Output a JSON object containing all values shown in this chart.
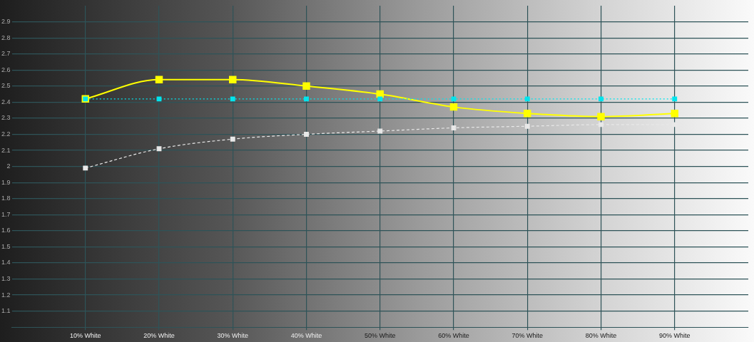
{
  "chart_data": {
    "type": "line",
    "categories": [
      "10% White",
      "20% White",
      "30% White",
      "40% White",
      "50% White",
      "60% White",
      "70% White",
      "80% White",
      "90% White"
    ],
    "series": [
      {
        "color": "#ffff00",
        "line_style": "solid",
        "values": [
          2.42,
          2.54,
          2.54,
          2.5,
          2.45,
          2.37,
          2.33,
          2.31,
          2.33
        ]
      },
      {
        "color": "#00e5ee",
        "line_style": "dotted",
        "values": [
          2.42,
          2.42,
          2.42,
          2.42,
          2.42,
          2.42,
          2.42,
          2.42,
          2.42
        ]
      },
      {
        "color": "#e8e8e8",
        "line_style": "dashed",
        "values": [
          1.99,
          2.11,
          2.17,
          2.2,
          2.22,
          2.24,
          2.25,
          2.26,
          2.26
        ]
      }
    ],
    "ylim": [
      1,
      3
    ],
    "yticks": [
      1.1,
      1.2,
      1.3,
      1.4,
      1.5,
      1.6,
      1.7,
      1.8,
      1.9,
      2,
      2.1,
      2.2,
      2.3,
      2.4,
      2.5,
      2.6,
      2.7,
      2.8,
      2.9
    ],
    "grid": true,
    "marker": "square",
    "legend": false
  }
}
